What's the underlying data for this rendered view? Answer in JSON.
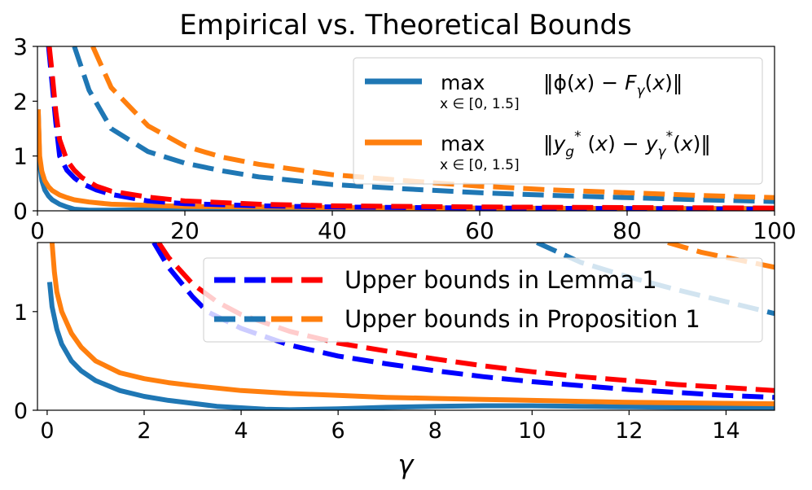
{
  "chart_data": [
    {
      "type": "line",
      "title": "Empirical vs. Theoretical Bounds",
      "xlabel": "",
      "ylabel": "",
      "xlim": [
        0,
        100
      ],
      "ylim": [
        0,
        3
      ],
      "xticks": [
        "0",
        "20",
        "40",
        "60",
        "80",
        "100"
      ],
      "yticks": [
        "0",
        "1",
        "2",
        "3"
      ],
      "legend_position": "top-right",
      "legend": [
        {
          "series": "phi",
          "text": "max‖ϕ(x) − F_γ(x)‖",
          "sub": "x ∈ [0, 1.5]"
        },
        {
          "series": "yg",
          "text": "max‖y_g*(x) − y_γ*(x)‖",
          "sub": "x ∈ [0, 1.5]"
        }
      ],
      "series": [
        {
          "key": "phi",
          "color": "#1f77b4",
          "style": "solid",
          "x": [
            0.1,
            0.3,
            0.6,
            1,
            1.5,
            2,
            3,
            4,
            5,
            7,
            10,
            15,
            20,
            30,
            40,
            60,
            80,
            100
          ],
          "y": [
            1.85,
            0.85,
            0.55,
            0.38,
            0.27,
            0.2,
            0.12,
            0.07,
            0.03,
            0.01,
            0.01,
            0.02,
            0.03,
            0.03,
            0.04,
            0.04,
            0.04,
            0.04
          ]
        },
        {
          "key": "yg",
          "color": "#ff7f0e",
          "style": "solid",
          "x": [
            0.1,
            0.3,
            0.6,
            1,
            1.5,
            2,
            3,
            4,
            5,
            7,
            10,
            15,
            20,
            30,
            40,
            60,
            80,
            100
          ],
          "y": [
            1.85,
            1.0,
            0.72,
            0.55,
            0.44,
            0.37,
            0.29,
            0.24,
            0.2,
            0.16,
            0.12,
            0.1,
            0.08,
            0.07,
            0.06,
            0.05,
            0.04,
            0.04
          ]
        },
        {
          "key": "lemma_blue",
          "color": "#0000ff",
          "style": "dashed",
          "x": [
            1.5,
            2,
            2.5,
            3,
            4,
            5,
            6,
            8,
            10,
            15,
            20,
            30,
            40,
            60,
            80,
            100
          ],
          "y": [
            3.0,
            2.3,
            1.6,
            1.0,
            0.74,
            0.6,
            0.5,
            0.38,
            0.3,
            0.18,
            0.13,
            0.09,
            0.07,
            0.05,
            0.04,
            0.03
          ]
        },
        {
          "key": "lemma_red",
          "color": "#ff0000",
          "style": "dashed",
          "x": [
            1.6,
            2,
            2.5,
            3,
            4,
            5,
            6,
            8,
            10,
            15,
            20,
            30,
            40,
            60,
            80,
            100
          ],
          "y": [
            3.0,
            2.5,
            1.8,
            1.3,
            0.92,
            0.74,
            0.61,
            0.45,
            0.36,
            0.25,
            0.18,
            0.12,
            0.09,
            0.07,
            0.06,
            0.05
          ]
        },
        {
          "key": "prop_blue",
          "color": "#1f77b4",
          "style": "dashed",
          "x": [
            5,
            7,
            10,
            15,
            20,
            25,
            30,
            40,
            50,
            60,
            70,
            80,
            90,
            100
          ],
          "y": [
            3.0,
            2.2,
            1.5,
            1.08,
            0.87,
            0.73,
            0.62,
            0.48,
            0.4,
            0.33,
            0.28,
            0.24,
            0.2,
            0.17
          ]
        },
        {
          "key": "prop_orange",
          "color": "#ff7f0e",
          "style": "dashed",
          "x": [
            7.5,
            10,
            15,
            20,
            25,
            30,
            40,
            50,
            60,
            70,
            80,
            90,
            100
          ],
          "y": [
            3.0,
            2.25,
            1.55,
            1.18,
            0.98,
            0.85,
            0.66,
            0.55,
            0.45,
            0.38,
            0.33,
            0.28,
            0.24
          ]
        }
      ]
    },
    {
      "type": "line",
      "title": "",
      "xlabel": "γ",
      "ylabel": "",
      "xlim": [
        -0.2,
        15
      ],
      "ylim": [
        0,
        1.7
      ],
      "xticks": [
        "0",
        "2",
        "4",
        "6",
        "8",
        "10",
        "12",
        "14"
      ],
      "yticks": [
        "0",
        "1"
      ],
      "legend_position": "top-right",
      "legend": [
        {
          "text": "Upper bounds in Lemma 1",
          "colors": [
            "#0000ff",
            "#ff0000"
          ]
        },
        {
          "text": "Upper bounds in Proposition 1",
          "colors": [
            "#1f77b4",
            "#ff7f0e"
          ]
        }
      ],
      "series": [
        {
          "key": "phi",
          "color": "#1f77b4",
          "style": "solid",
          "x": [
            0.05,
            0.1,
            0.2,
            0.3,
            0.5,
            0.7,
            1,
            1.5,
            2,
            2.5,
            3,
            3.5,
            4,
            4.5,
            5,
            6,
            7,
            8,
            9,
            10,
            11,
            12,
            13,
            14,
            15
          ],
          "y": [
            1.3,
            1.05,
            0.82,
            0.67,
            0.5,
            0.4,
            0.3,
            0.2,
            0.14,
            0.1,
            0.07,
            0.04,
            0.025,
            0.01,
            0.005,
            0.015,
            0.03,
            0.04,
            0.045,
            0.045,
            0.04,
            0.035,
            0.03,
            0.03,
            0.025
          ]
        },
        {
          "key": "yg",
          "color": "#ff7f0e",
          "style": "solid",
          "x": [
            0.1,
            0.15,
            0.2,
            0.3,
            0.5,
            0.7,
            1,
            1.5,
            2,
            2.5,
            3,
            4,
            5,
            6,
            7,
            8,
            9,
            10,
            11,
            12,
            13,
            14,
            15
          ],
          "y": [
            1.7,
            1.4,
            1.2,
            1.0,
            0.78,
            0.64,
            0.5,
            0.38,
            0.32,
            0.28,
            0.25,
            0.2,
            0.17,
            0.15,
            0.13,
            0.12,
            0.11,
            0.1,
            0.09,
            0.08,
            0.075,
            0.07,
            0.065
          ]
        },
        {
          "key": "lemma_blue",
          "color": "#0000ff",
          "style": "dashed",
          "x": [
            2.2,
            2.5,
            3,
            3.3,
            4,
            5,
            6,
            7,
            8,
            9,
            10,
            11,
            12,
            13,
            14,
            15
          ],
          "y": [
            1.7,
            1.45,
            1.15,
            1.0,
            0.83,
            0.66,
            0.55,
            0.47,
            0.4,
            0.34,
            0.29,
            0.25,
            0.21,
            0.18,
            0.15,
            0.13
          ]
        },
        {
          "key": "lemma_red",
          "color": "#ff0000",
          "style": "dashed",
          "x": [
            2.3,
            2.5,
            3,
            3.5,
            4,
            5,
            6,
            7,
            8,
            9,
            10,
            11,
            12,
            13,
            14,
            15
          ],
          "y": [
            1.7,
            1.55,
            1.28,
            1.1,
            0.97,
            0.8,
            0.68,
            0.6,
            0.52,
            0.45,
            0.39,
            0.34,
            0.3,
            0.26,
            0.23,
            0.2
          ]
        },
        {
          "key": "prop_blue",
          "color": "#1f77b4",
          "style": "dashed",
          "x": [
            10.1,
            11,
            12,
            13,
            14,
            15
          ],
          "y": [
            1.7,
            1.5,
            1.35,
            1.22,
            1.1,
            0.98
          ]
        },
        {
          "key": "prop_orange",
          "color": "#ff7f0e",
          "style": "dashed",
          "x": [
            12.8,
            13.5,
            14,
            14.5,
            15
          ],
          "y": [
            1.7,
            1.6,
            1.55,
            1.5,
            1.45
          ]
        }
      ]
    }
  ]
}
